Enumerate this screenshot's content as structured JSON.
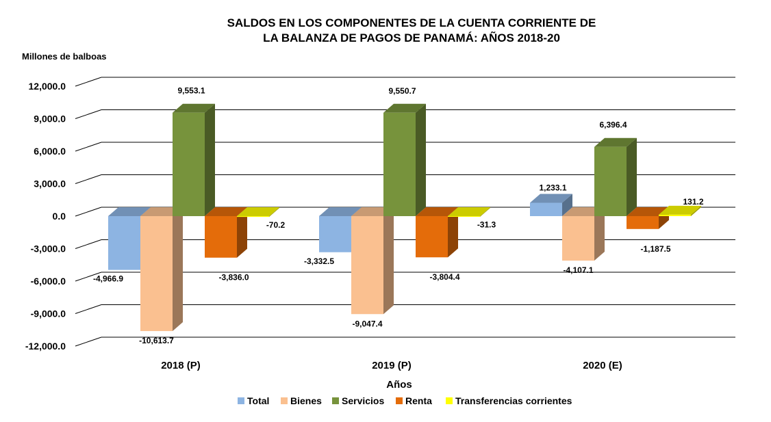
{
  "chart_data": {
    "type": "bar",
    "title_line1": "SALDOS EN LOS COMPONENTES DE LA CUENTA CORRIENTE DE",
    "title_line2": "LA BALANZA DE PAGOS DE PANAMÁ: AÑOS 2018-20",
    "ylabel": "Millones de balboas",
    "xlabel": "Años",
    "ylim": [
      -12000,
      12000
    ],
    "y_ticks": [
      12000,
      9000,
      6000,
      3000,
      0,
      -3000,
      -6000,
      -9000,
      -12000
    ],
    "y_tick_labels": [
      "12,000.0",
      "9,000.0",
      "6,000.0",
      "3,000.0",
      "0.0",
      "-3,000.0",
      "-6,000.0",
      "-9,000.0",
      "-12,000.0"
    ],
    "categories": [
      "2018 (P)",
      "2019 (P)",
      "2020 (E)"
    ],
    "series": [
      {
        "name": "Total",
        "color": "#8DB4E2",
        "values": [
          -4966.9,
          -3332.5,
          1233.1
        ],
        "labels": [
          "-4,966.9",
          "-3,332.5",
          "1,233.1"
        ]
      },
      {
        "name": "Bienes",
        "color": "#FAC090",
        "values": [
          -10613.7,
          -9047.4,
          -4107.1
        ],
        "labels": [
          "-10,613.7",
          "-9,047.4",
          "-4,107.1"
        ]
      },
      {
        "name": "Servicios",
        "color": "#77933C",
        "values": [
          9553.1,
          9550.7,
          6396.4
        ],
        "labels": [
          "9,553.1",
          "9,550.7",
          "6,396.4"
        ]
      },
      {
        "name": "Renta",
        "color": "#E46C0A",
        "values": [
          -3836.0,
          -3804.4,
          -1187.5
        ],
        "labels": [
          "-3,836.0",
          "-3,804.4",
          "-1,187.5"
        ]
      },
      {
        "name": "Transferencias corrientes",
        "color": "#FFFF00",
        "values": [
          -70.2,
          -31.3,
          131.2
        ],
        "labels": [
          "-70.2",
          "-31.3",
          "131.2"
        ]
      }
    ],
    "grid": true,
    "legend_position": "bottom"
  }
}
